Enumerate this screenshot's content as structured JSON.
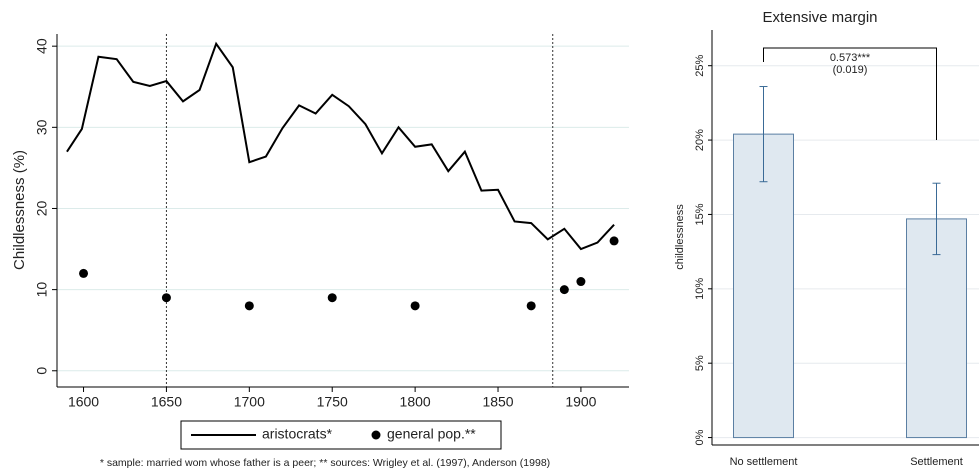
{
  "chart_data": [
    {
      "type": "line",
      "x": [
        1590,
        1599,
        1609,
        1620,
        1630,
        1640,
        1650,
        1660,
        1670,
        1680,
        1690,
        1700,
        1710,
        1720,
        1730,
        1740,
        1750,
        1760,
        1770,
        1780,
        1790,
        1800,
        1810,
        1820,
        1830,
        1840,
        1850,
        1860,
        1870,
        1880,
        1890,
        1900,
        1910,
        1920
      ],
      "series": [
        {
          "name": "aristocrats*",
          "color": "#000000",
          "style": "line",
          "values": [
            27,
            29.8,
            38.7,
            38.4,
            35.6,
            35.1,
            35.7,
            33.2,
            34.6,
            40.3,
            37.4,
            25.7,
            26.4,
            29.9,
            32.7,
            31.7,
            34.0,
            32.6,
            30.4,
            26.8,
            30.0,
            27.6,
            27.9,
            24.6,
            27.0,
            22.2,
            22.3,
            18.4,
            18.2,
            16.2,
            17.5,
            15.0,
            15.8,
            18.0
          ]
        },
        {
          "name": "general pop.**",
          "color": "#000000",
          "style": "scatter",
          "x": [
            1600,
            1650,
            1700,
            1750,
            1800,
            1870,
            1890,
            1900,
            1920
          ],
          "values": [
            12,
            9,
            8,
            9,
            8,
            8,
            10,
            11,
            16
          ]
        }
      ],
      "y_label": "Childlessness (%)",
      "xlim": [
        1584,
        1929
      ],
      "ylim": [
        -2,
        41.5
      ],
      "xticks": [
        1600,
        1650,
        1700,
        1750,
        1800,
        1850,
        1900
      ],
      "yticks": [
        0,
        10,
        20,
        30,
        40
      ],
      "vlines": [
        1650,
        1883
      ],
      "grid": true,
      "note": "* sample: married wom whose father is a peer; ** sources: Wrigley et al. (1997), Anderson (1998)"
    },
    {
      "type": "bar",
      "title": "Extensive margin",
      "y_label": "childlessness",
      "categories": [
        "No settlement",
        "Settlement"
      ],
      "values": [
        20.4,
        14.7
      ],
      "errors": [
        3.2,
        2.4
      ],
      "color": "#dfe8f0",
      "edge_color": "#5b7fa3",
      "error_color": "#3a6a96",
      "ylim": [
        -0.5,
        27.4
      ],
      "yticks": [
        {
          "value": 0,
          "label": "0%"
        },
        {
          "value": 5,
          "label": "5%"
        },
        {
          "value": 10,
          "label": "10%"
        },
        {
          "value": 15,
          "label": "15%"
        },
        {
          "value": 20,
          "label": "20%"
        },
        {
          "value": 25,
          "label": "25%"
        }
      ],
      "annotation": [
        "0.573***",
        "(0.019)"
      ],
      "grid": true
    }
  ]
}
